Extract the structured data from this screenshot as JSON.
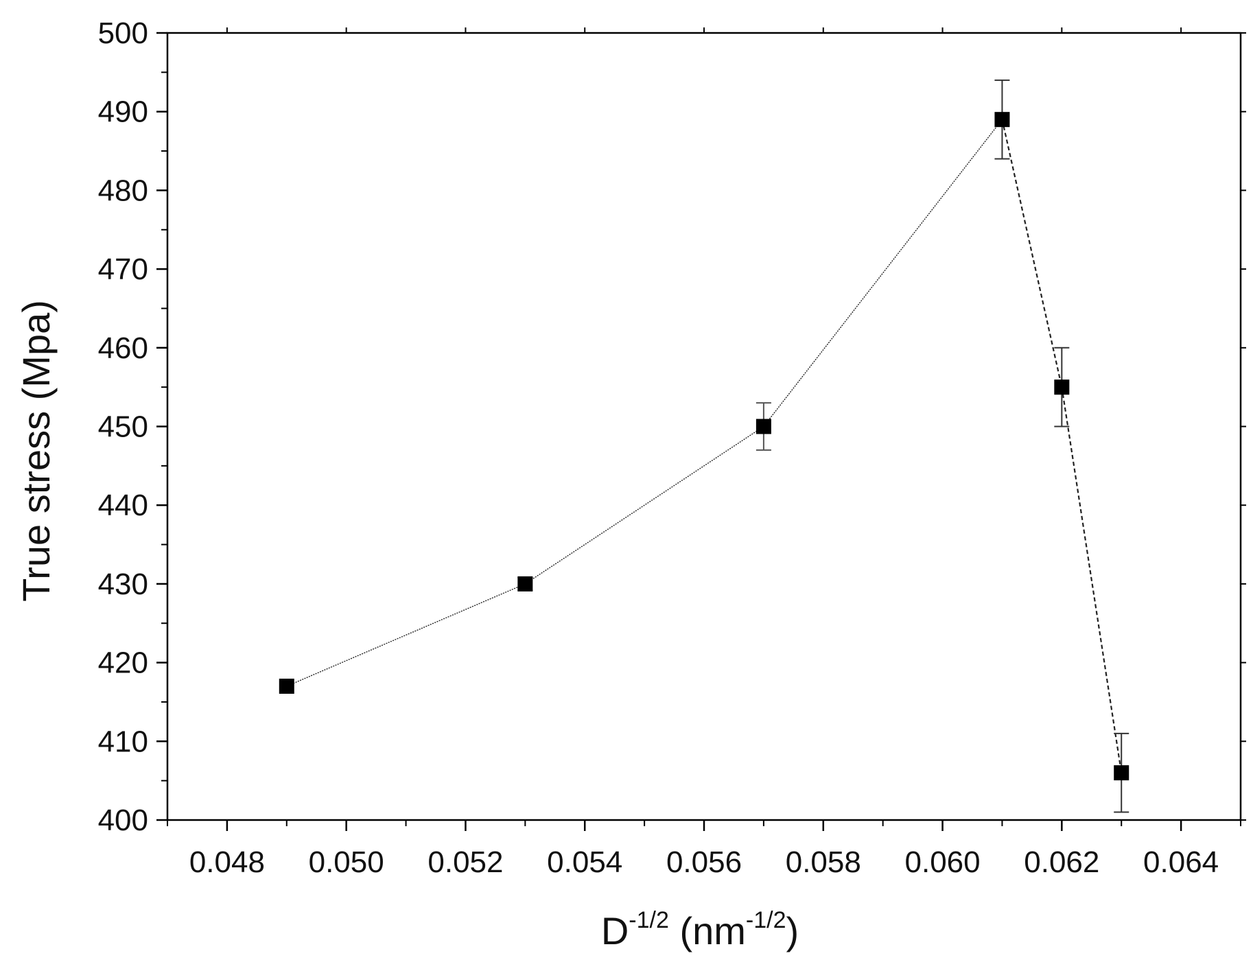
{
  "chart_data": {
    "type": "line",
    "title": "",
    "xlabel": {
      "base": "D",
      "base_exp": "-1/2",
      "unit_open": " (nm",
      "unit_exp": "-1/2",
      "unit_close": ")"
    },
    "ylabel": "True stress (Mpa)",
    "xlim": [
      0.047,
      0.065
    ],
    "ylim": [
      400,
      500
    ],
    "x_ticks": [
      0.048,
      0.05,
      0.052,
      0.054,
      0.056,
      0.058,
      0.06,
      0.062,
      0.064
    ],
    "x_tick_labels": [
      "0.048",
      "0.050",
      "0.052",
      "0.054",
      "0.056",
      "0.058",
      "0.060",
      "0.062",
      "0.064"
    ],
    "y_ticks": [
      400,
      410,
      420,
      430,
      440,
      450,
      460,
      470,
      480,
      490,
      500
    ],
    "y_tick_labels": [
      "400",
      "410",
      "420",
      "430",
      "440",
      "450",
      "460",
      "470",
      "480",
      "490",
      "500"
    ],
    "grid": false,
    "legend": "none",
    "series": [
      {
        "x": [
          0.049,
          0.053,
          0.057,
          0.061,
          0.062,
          0.063
        ],
        "y": [
          417,
          430,
          450,
          489,
          455,
          406
        ],
        "yerr": [
          0,
          0.8,
          3,
          5,
          5,
          5
        ],
        "marker": "square",
        "color": "#000000"
      }
    ]
  }
}
